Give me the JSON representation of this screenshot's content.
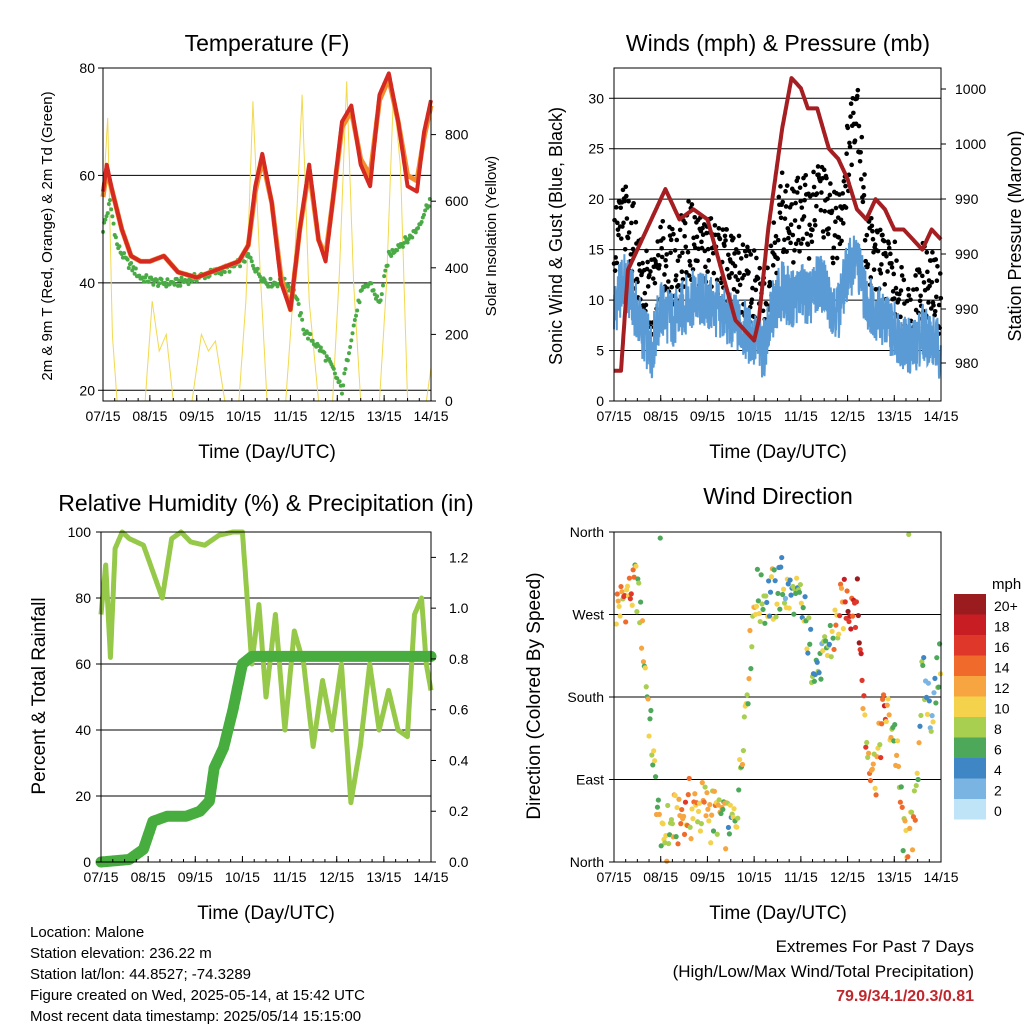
{
  "panels": {
    "temperature": {
      "title": "Temperature (F)",
      "ylabel_left": "2m & 9m T (Red, Orange) & 2m Td (Green)",
      "ylabel_right": "Solar Insolation (Yellow)",
      "xlabel": "Time (Day/UTC)",
      "y_ticks": [
        "20",
        "40",
        "60",
        "80"
      ],
      "y2_ticks": [
        "0",
        "200",
        "400",
        "600",
        "800"
      ],
      "x_ticks": [
        "07/15",
        "08/15",
        "09/15",
        "10/15",
        "11/15",
        "12/15",
        "13/15",
        "14/15"
      ]
    },
    "winds": {
      "title": "Winds (mph) & Pressure (mb)",
      "ylabel_left": "Sonic Wind & Gust (Blue, Black)",
      "ylabel_right": "Station Pressure (Maroon)",
      "xlabel": "Time (Day/UTC)",
      "y_ticks": [
        "0",
        "5",
        "10",
        "15",
        "20",
        "25",
        "30"
      ],
      "y2_ticks": [
        "980",
        "990",
        "990",
        "990",
        "1000",
        "1000"
      ],
      "x_ticks": [
        "07/15",
        "08/15",
        "09/15",
        "10/15",
        "11/15",
        "12/15",
        "13/15",
        "14/15"
      ]
    },
    "humidity": {
      "title": "Relative Humidity (%) & Precipitation (in)",
      "ylabel_left": "Percent & Total Rainfall",
      "xlabel": "Time (Day/UTC)",
      "y_ticks": [
        "0",
        "20",
        "40",
        "60",
        "80",
        "100"
      ],
      "y2_ticks": [
        "0.0",
        "0.2",
        "0.4",
        "0.6",
        "0.8",
        "1.0",
        "1.2"
      ],
      "x_ticks": [
        "07/15",
        "08/15",
        "09/15",
        "10/15",
        "11/15",
        "12/15",
        "13/15",
        "14/15"
      ]
    },
    "direction": {
      "title": "Wind Direction",
      "ylabel_left": "Direction (Colored By Speed)",
      "xlabel": "Time (Day/UTC)",
      "y_ticks": [
        "North",
        "East",
        "South",
        "West",
        "North"
      ],
      "x_ticks": [
        "07/15",
        "08/15",
        "09/15",
        "10/15",
        "11/15",
        "12/15",
        "13/15",
        "14/15"
      ],
      "legend_title": "mph",
      "legend_labels": [
        "20+",
        "18",
        "16",
        "14",
        "12",
        "10",
        "8",
        "6",
        "4",
        "2",
        "0"
      ],
      "legend_colors": [
        "#9b1c1f",
        "#c81e23",
        "#e0372b",
        "#f06a2c",
        "#f7a540",
        "#f4d24c",
        "#a8cf4f",
        "#4da85a",
        "#3f86c4",
        "#79b4e3",
        "#bfe3f7"
      ]
    }
  },
  "footer": {
    "location": "Location: Malone",
    "elevation": "Station elevation: 236.22 m",
    "latlon": "Station lat/lon: 44.8527; -74.3289",
    "created": "Figure created on Wed, 2025-05-14, at 15:42 UTC",
    "recent": "Most recent data timestamp: 2025/05/14 15:15:00",
    "extremes_title": "Extremes For Past 7 Days",
    "extremes_subtitle": "(High/Low/Max Wind/Total Precipitation)",
    "extremes_values": "79.9/34.1/20.3/0.81"
  },
  "colors": {
    "temp_2m": "#d42a22",
    "temp_9m": "#f28c2c",
    "dewpoint": "#4aab46",
    "solar": "#f2d94e",
    "wind": "#5b9bd5",
    "gust": "#000000",
    "pressure": "#a51f22",
    "rh": "#96c94a",
    "precip": "#46ad3e",
    "extremes": "#c0272d"
  },
  "chart_data": [
    {
      "type": "line",
      "title": "Temperature (F)",
      "xlabel": "Time (Day/UTC)",
      "ylabel": "2m & 9m T (Red, Orange) & 2m Td (Green)",
      "ylabel_right": "Solar Insolation (Yellow)",
      "x": [
        "07/15",
        "08/15",
        "09/15",
        "10/15",
        "11/15",
        "12/15",
        "13/15",
        "14/15"
      ],
      "ylim": [
        18,
        80
      ],
      "ylim_right": [
        0,
        1000
      ],
      "series": [
        {
          "name": "2m T",
          "x": [
            0,
            0.08,
            0.2,
            0.4,
            0.6,
            0.8,
            1.0,
            1.3,
            1.6,
            2.0,
            2.3,
            2.6,
            2.9,
            3.1,
            3.25,
            3.4,
            3.6,
            3.8,
            4.0,
            4.2,
            4.4,
            4.6,
            4.75,
            4.9,
            5.1,
            5.3,
            5.5,
            5.7,
            5.9,
            6.1,
            6.3,
            6.5,
            6.7,
            6.85,
            7.0
          ],
          "values": [
            57,
            62,
            57,
            50,
            45,
            44,
            44,
            45,
            42,
            41,
            42,
            43,
            44,
            47,
            58,
            64,
            55,
            40,
            35,
            50,
            62,
            48,
            44,
            55,
            70,
            73,
            62,
            58,
            75,
            79,
            70,
            58,
            57,
            68,
            74
          ]
        },
        {
          "name": "9m T",
          "x": [
            0,
            0.08,
            0.2,
            0.4,
            0.6,
            0.8,
            1.0,
            1.3,
            1.6,
            2.0,
            2.3,
            2.6,
            2.9,
            3.1,
            3.25,
            3.4,
            3.6,
            3.8,
            4.0,
            4.2,
            4.4,
            4.6,
            4.75,
            4.9,
            5.1,
            5.3,
            5.5,
            5.7,
            5.9,
            6.1,
            6.3,
            6.5,
            6.7,
            6.85,
            7.0
          ],
          "values": [
            56,
            61,
            57,
            50,
            45,
            44,
            44,
            45,
            42,
            41,
            42,
            43,
            44,
            47,
            57,
            63,
            55,
            41,
            35,
            50,
            61,
            48,
            45,
            55,
            69,
            72,
            63,
            60,
            74,
            78,
            70,
            60,
            59,
            67,
            73
          ]
        },
        {
          "name": "2m Td",
          "x": [
            0,
            0.15,
            0.3,
            0.5,
            0.8,
            1.2,
            1.6,
            2.0,
            2.4,
            2.8,
            3.1,
            3.3,
            3.5,
            3.7,
            3.9,
            4.1,
            4.3,
            4.5,
            4.7,
            4.9,
            5.1,
            5.3,
            5.5,
            5.7,
            5.9,
            6.1,
            6.3,
            6.5,
            6.7,
            6.9,
            7.0
          ],
          "values": [
            50,
            55,
            47,
            44,
            41,
            40,
            40,
            41,
            42,
            43,
            45,
            42,
            40,
            40,
            40,
            38,
            31,
            29,
            27,
            24,
            20,
            30,
            38,
            40,
            36,
            45,
            47,
            48,
            50,
            54,
            56
          ]
        },
        {
          "name": "Solar Insolation",
          "axis": "right",
          "x": [
            0,
            0.1,
            0.2,
            0.3,
            0.5,
            0.9,
            1.05,
            1.2,
            1.35,
            1.5,
            1.9,
            2.1,
            2.25,
            2.4,
            2.6,
            2.9,
            3.05,
            3.2,
            3.35,
            3.5,
            3.9,
            4.05,
            4.25,
            4.4,
            4.6,
            4.9,
            5.05,
            5.2,
            5.35,
            5.5,
            5.9,
            6.05,
            6.2,
            6.35,
            6.5,
            6.9,
            7.0
          ],
          "values": [
            600,
            850,
            200,
            0,
            0,
            0,
            300,
            150,
            200,
            0,
            0,
            200,
            150,
            180,
            0,
            0,
            300,
            900,
            400,
            0,
            0,
            300,
            920,
            300,
            0,
            0,
            400,
            960,
            350,
            0,
            0,
            350,
            930,
            700,
            0,
            0,
            100
          ]
        }
      ]
    },
    {
      "type": "line",
      "title": "Winds (mph) & Pressure (mb)",
      "xlabel": "Time (Day/UTC)",
      "ylabel": "Sonic Wind & Gust (Blue, Black)",
      "ylabel_right": "Station Pressure (Maroon)",
      "x": [
        "07/15",
        "08/15",
        "09/15",
        "10/15",
        "11/15",
        "12/15",
        "13/15",
        "14/15"
      ],
      "ylim": [
        0,
        33
      ],
      "series": [
        {
          "name": "Sonic Wind",
          "x": [
            0,
            0.2,
            0.4,
            0.6,
            0.8,
            1.0,
            1.3,
            1.6,
            1.9,
            2.2,
            2.5,
            2.8,
            3.0,
            3.2,
            3.4,
            3.6,
            3.8,
            4.0,
            4.2,
            4.4,
            4.6,
            4.8,
            5.0,
            5.2,
            5.4,
            5.6,
            5.8,
            6.0,
            6.2,
            6.4,
            6.6,
            6.8,
            7.0
          ],
          "values": [
            9,
            12,
            10,
            7,
            5,
            9,
            8,
            10,
            10,
            9,
            8,
            7,
            6,
            5,
            9,
            11,
            10,
            11,
            10,
            12,
            10,
            9,
            13,
            14,
            10,
            9,
            8,
            7,
            6,
            5,
            7,
            6,
            5
          ]
        },
        {
          "name": "Gust",
          "x": [
            0,
            0.2,
            0.4,
            0.6,
            0.8,
            1.0,
            1.3,
            1.6,
            1.9,
            2.2,
            2.5,
            2.8,
            3.0,
            3.2,
            3.4,
            3.6,
            3.8,
            4.0,
            4.2,
            4.4,
            4.6,
            4.8,
            5.0,
            5.2,
            5.4,
            5.6,
            5.8,
            6.0,
            6.2,
            6.4,
            6.6,
            6.8,
            7.0
          ],
          "values": [
            15,
            18,
            16,
            12,
            10,
            14,
            13,
            16,
            15,
            14,
            13,
            12,
            11,
            9,
            15,
            19,
            17,
            19,
            18,
            21,
            18,
            17,
            24,
            31,
            16,
            14,
            13,
            12,
            10,
            8,
            12,
            11,
            10
          ]
        },
        {
          "name": "Station Pressure",
          "axis": "right",
          "x": [
            0,
            0.15,
            0.3,
            0.5,
            0.8,
            1.1,
            1.4,
            1.7,
            2.0,
            2.3,
            2.6,
            2.8,
            3.0,
            3.1,
            3.3,
            3.6,
            3.8,
            4.0,
            4.15,
            4.35,
            4.6,
            4.8,
            5.0,
            5.2,
            5.4,
            5.6,
            5.8,
            6.0,
            6.2,
            6.4,
            6.6,
            6.8,
            7.0
          ],
          "values": [
            3,
            3,
            13,
            15,
            18,
            21,
            18,
            19,
            18,
            13,
            8,
            7,
            6,
            8,
            17,
            27,
            32,
            31,
            29,
            29,
            25,
            24,
            22,
            19,
            18,
            20,
            19,
            17,
            17,
            16,
            15,
            17,
            16
          ]
        }
      ]
    },
    {
      "type": "line",
      "title": "Relative Humidity (%) & Precipitation (in)",
      "xlabel": "Time (Day/UTC)",
      "ylabel": "Percent & Total Rainfall",
      "x": [
        "07/15",
        "08/15",
        "09/15",
        "10/15",
        "11/15",
        "12/15",
        "13/15",
        "14/15"
      ],
      "ylim": [
        0,
        100
      ],
      "ylim_right": [
        0.0,
        1.3
      ],
      "series": [
        {
          "name": "Relative Humidity",
          "x": [
            0,
            0.1,
            0.2,
            0.3,
            0.45,
            0.6,
            0.9,
            1.1,
            1.3,
            1.5,
            1.7,
            1.9,
            2.2,
            2.5,
            2.8,
            3.0,
            3.2,
            3.35,
            3.5,
            3.7,
            3.9,
            4.1,
            4.3,
            4.5,
            4.7,
            4.9,
            5.1,
            5.3,
            5.5,
            5.7,
            5.9,
            6.1,
            6.3,
            6.5,
            6.65,
            6.8,
            6.9,
            7.0
          ],
          "values": [
            75,
            90,
            62,
            95,
            100,
            98,
            96,
            88,
            80,
            98,
            100,
            97,
            96,
            99,
            100,
            100,
            60,
            78,
            50,
            75,
            40,
            70,
            60,
            35,
            55,
            40,
            60,
            18,
            35,
            60,
            40,
            52,
            40,
            38,
            75,
            80,
            60,
            52
          ]
        },
        {
          "name": "Total Precipitation",
          "axis": "right",
          "x": [
            0,
            0.6,
            0.9,
            1.1,
            1.4,
            1.8,
            2.1,
            2.3,
            2.4,
            2.6,
            2.8,
            3.0,
            3.2,
            7.0
          ],
          "values": [
            0.0,
            0.01,
            0.05,
            0.16,
            0.18,
            0.18,
            0.2,
            0.24,
            0.37,
            0.45,
            0.6,
            0.78,
            0.81,
            0.81
          ]
        }
      ]
    },
    {
      "type": "scatter",
      "title": "Wind Direction",
      "xlabel": "Time (Day/UTC)",
      "ylabel": "Direction (Colored By Speed)",
      "x": [
        "07/15",
        "08/15",
        "09/15",
        "10/15",
        "11/15",
        "12/15",
        "13/15",
        "14/15"
      ],
      "y": [
        "North",
        "East",
        "South",
        "West",
        "North"
      ],
      "colorbar": {
        "title": "mph",
        "labels": [
          "20+",
          "18",
          "16",
          "14",
          "12",
          "10",
          "8",
          "6",
          "4",
          "2",
          "0"
        ]
      },
      "series": [
        {
          "name": "Direction",
          "x": [
            0.1,
            0.3,
            0.5,
            1.0,
            1.3,
            1.6,
            2.0,
            2.3,
            2.6,
            3.0,
            3.3,
            3.6,
            4.0,
            4.2,
            4.4,
            4.7,
            5.0,
            5.2,
            5.4,
            5.6,
            5.8,
            6.0,
            6.2,
            6.4,
            6.6,
            6.8,
            7.0
          ],
          "values": [
            280,
            295,
            305,
            20,
            45,
            55,
            60,
            50,
            40,
            285,
            290,
            300,
            280,
            230,
            210,
            250,
            285,
            290,
            130,
            100,
            170,
            140,
            30,
            20,
            200,
            160,
            220
          ],
          "speeds": [
            10,
            13,
            9,
            8,
            10,
            12,
            11,
            9,
            7,
            9,
            8,
            6,
            8,
            5,
            4,
            10,
            16,
            18,
            12,
            10,
            14,
            8,
            10,
            12,
            6,
            5,
            7
          ]
        }
      ]
    }
  ]
}
